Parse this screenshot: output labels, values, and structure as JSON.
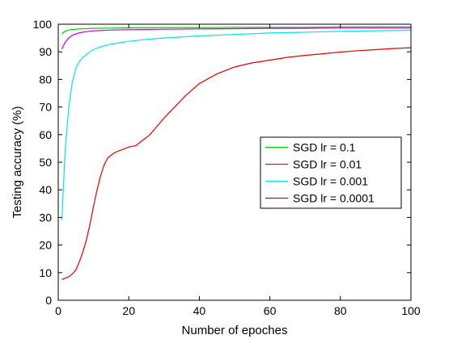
{
  "chart_data": {
    "type": "line",
    "title": "",
    "xlabel": "Number of epoches",
    "ylabel": "Testing accuracy (%)",
    "xlim": [
      0,
      100
    ],
    "ylim": [
      0,
      100
    ],
    "xticks": [
      0,
      20,
      40,
      60,
      80,
      100
    ],
    "yticks": [
      0,
      10,
      20,
      30,
      40,
      50,
      60,
      70,
      80,
      90,
      100
    ],
    "grid": false,
    "legend_position": "center-right",
    "series": [
      {
        "name": "SGD lr = 0.1",
        "color": "#00cc00",
        "x": [
          1,
          2,
          3,
          4,
          5,
          6,
          8,
          10,
          15,
          20,
          30,
          40,
          50,
          60,
          70,
          80,
          90,
          100
        ],
        "y": [
          96.5,
          97.5,
          97.9,
          98.1,
          98.2,
          98.3,
          98.4,
          98.5,
          98.6,
          98.7,
          98.8,
          98.8,
          98.9,
          98.9,
          98.9,
          99.0,
          99.0,
          99.0
        ]
      },
      {
        "name": "SGD lr = 0.01",
        "color": "#cc00cc",
        "x": [
          1,
          2,
          3,
          4,
          5,
          6,
          8,
          10,
          15,
          20,
          30,
          40,
          50,
          60,
          70,
          80,
          90,
          100
        ],
        "y": [
          91,
          93.5,
          95,
          96,
          96.5,
          96.9,
          97.3,
          97.6,
          97.9,
          98.0,
          98.2,
          98.3,
          98.4,
          98.5,
          98.5,
          98.6,
          98.6,
          98.6
        ]
      },
      {
        "name": "SGD lr = 0.001",
        "color": "#00e5e5",
        "x": [
          1,
          2,
          3,
          4,
          5,
          6,
          7,
          8,
          9,
          10,
          12,
          15,
          20,
          25,
          30,
          40,
          50,
          60,
          70,
          80,
          90,
          100
        ],
        "y": [
          29,
          55,
          70,
          79,
          84,
          86.5,
          88,
          89,
          90,
          90.8,
          91.8,
          92.8,
          93.8,
          94.5,
          95.0,
          95.8,
          96.3,
          96.8,
          97.1,
          97.4,
          97.6,
          97.8
        ]
      },
      {
        "name": "SGD lr = 0.0001",
        "color": "#e60000",
        "x": [
          1,
          2,
          3,
          4,
          5,
          6,
          7,
          8,
          9,
          10,
          11,
          12,
          13,
          14,
          15,
          16,
          18,
          20,
          22,
          24,
          26,
          28,
          30,
          33,
          36,
          40,
          45,
          50,
          55,
          60,
          65,
          70,
          75,
          80,
          85,
          90,
          95,
          100
        ],
        "y": [
          7.5,
          8,
          8.5,
          9.5,
          11,
          14,
          17.5,
          22,
          27.5,
          34,
          40,
          45,
          49,
          51.5,
          52.5,
          53.5,
          54.5,
          55.5,
          56,
          58,
          60,
          63,
          66,
          70,
          74,
          78.5,
          82,
          84.5,
          86,
          87,
          88,
          88.7,
          89.3,
          89.9,
          90.4,
          90.8,
          91.2,
          91.5
        ]
      }
    ]
  }
}
